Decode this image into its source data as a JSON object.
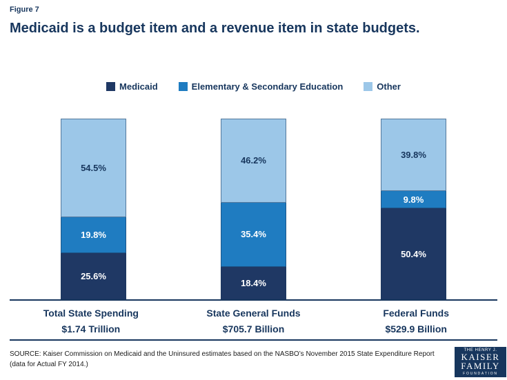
{
  "figure_label": "Figure 7",
  "title": "Medicaid is a budget item and a revenue item in state budgets.",
  "chart_data": {
    "type": "bar",
    "subtype": "stacked-100-percent-column",
    "unit": "percent",
    "grid": false,
    "legend_position": "top",
    "ylim": [
      0,
      100
    ],
    "stack_order_bottom_to_top": [
      "Medicaid",
      "Elementary & Secondary Education",
      "Other"
    ],
    "categories": [
      {
        "label": "Total State Spending",
        "amount": "$1.74 Trillion"
      },
      {
        "label": "State General Funds",
        "amount": "$705.7 Billion"
      },
      {
        "label": "Federal Funds",
        "amount": "$529.9 Billion"
      }
    ],
    "series": [
      {
        "name": "Medicaid",
        "color": "#1F3864",
        "text_color": "#FFFFFF",
        "values": [
          25.6,
          18.4,
          50.4
        ]
      },
      {
        "name": "Elementary & Secondary Education",
        "color": "#1F7CC1",
        "text_color": "#FFFFFF",
        "values": [
          19.8,
          35.4,
          9.8
        ]
      },
      {
        "name": "Other",
        "color": "#9CC7E8",
        "text_color": "#17365D",
        "values": [
          54.5,
          46.2,
          39.8
        ]
      }
    ]
  },
  "source_note": "SOURCE: Kaiser Commission on Medicaid and the Uninsured estimates based on the NASBO’s November 2015 State Expenditure Report (data for Actual FY 2014.)",
  "logo": {
    "line1": "THE HENRY J.",
    "line2": "KAISER",
    "line3": "FAMILY",
    "line4": "FOUNDATION"
  }
}
